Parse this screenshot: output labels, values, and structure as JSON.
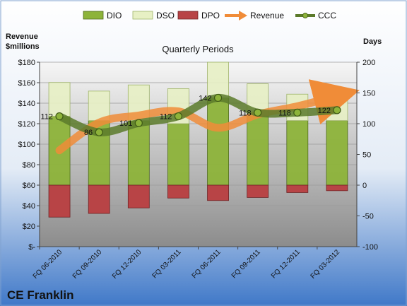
{
  "chart_data": {
    "type": "bar",
    "title": "Quarterly Periods",
    "company": "CE Franklin",
    "left_axis_label_line1": "Revenue",
    "left_axis_label_line2": "$millions",
    "right_axis_label": "Days",
    "categories": [
      "FQ 06-2010",
      "FQ 09-2010",
      "FQ 12-2010",
      "FQ 03-2011",
      "FQ 06-2011",
      "FQ 09-2011",
      "FQ 12-2011",
      "FQ 03-2012"
    ],
    "left_ylim": [
      0,
      180
    ],
    "left_ticks": [
      "$-",
      "$20",
      "$40",
      "$60",
      "$80",
      "$100",
      "$120",
      "$140",
      "$160",
      "$180"
    ],
    "right_ylim": [
      -100,
      200
    ],
    "right_ticks": [
      "-100",
      "-50",
      "0",
      "50",
      "100",
      "150",
      "200"
    ],
    "legend_position": "top",
    "grid": true,
    "series": [
      {
        "name": "DIO",
        "axis": "right",
        "kind": "bar",
        "color": "#8db33a",
        "values": [
          112,
          105,
          105,
          100,
          142,
          113,
          105,
          105
        ]
      },
      {
        "name": "DSO",
        "axis": "right",
        "kind": "bar",
        "color": "#e7f0c4",
        "values": [
          55,
          48,
          58,
          57,
          58,
          52,
          43,
          42
        ]
      },
      {
        "name": "DPO",
        "axis": "right",
        "kind": "bar",
        "color": "#b84446",
        "values": [
          -52,
          -46,
          -37,
          -21,
          -25,
          -20,
          -12,
          -9
        ]
      },
      {
        "name": "Revenue",
        "axis": "left",
        "kind": "line",
        "color": "#f08c38",
        "values": [
          94,
          121,
          128,
          132,
          116,
          129,
          137,
          147
        ]
      },
      {
        "name": "CCC",
        "axis": "right",
        "kind": "line",
        "color": "#5b7a2a",
        "values": [
          112,
          86,
          101,
          112,
          142,
          118,
          118,
          122
        ]
      }
    ],
    "ccc_labels": [
      "112",
      "86",
      "101",
      "112",
      "142",
      "118",
      "118",
      "122"
    ]
  }
}
